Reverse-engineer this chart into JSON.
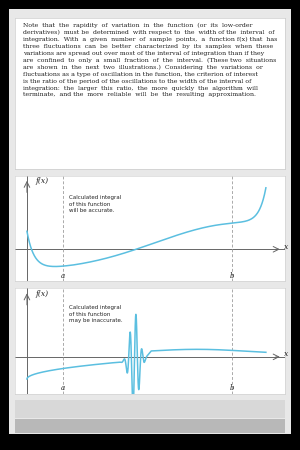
{
  "text_block": "Note  that  the  rapidity  of  variation  in  the  function  (or  its  low-order\nderivatives)  must be  determined  with respect to  the  width of the  interval  of\nintegration.  With  a  given  number  of  sample  points,  a  function f(x) that  has\nthree  fluctuations  can  be  better  characterized  by  its  samples  when  these\nvariations are spread out over most of the interval of integration than if they\nare  confined  to  only  a  small  fraction  of  the  interval.  (These two  situations\nare  shown  in  the  next  two  illustrations.)  Considering  the  variations  or\nfluctuations as a type of oscillation in the function, the criterion of interest\nis the ratio of the period of the oscillations to the width of the interval of\nintegration:  the  larger  this  ratio,  the  more  quickly  the  algorithm  will\nterminate,  and the  more  reliable  will  be  the  resulting  approximation.",
  "curve_color": "#5bbfe0",
  "axis_color": "#666666",
  "dashed_color": "#aaaaaa",
  "text_color": "#222222",
  "bg_color": "#ffffff",
  "outer_bg": "#000000",
  "plot_bg": "#ffffff",
  "label1": "Calculated integral\nof this function\nwill be accurate.",
  "label2": "Calculated integral\nof this function\nmay be inaccurate.",
  "ylabel": "f(x)",
  "xlabel": "x",
  "a_label": "a",
  "b_label": "b",
  "footer1_color": "#d8d8d8",
  "footer2_color": "#b8b8b8",
  "inner_bg": "#e8e8e8"
}
